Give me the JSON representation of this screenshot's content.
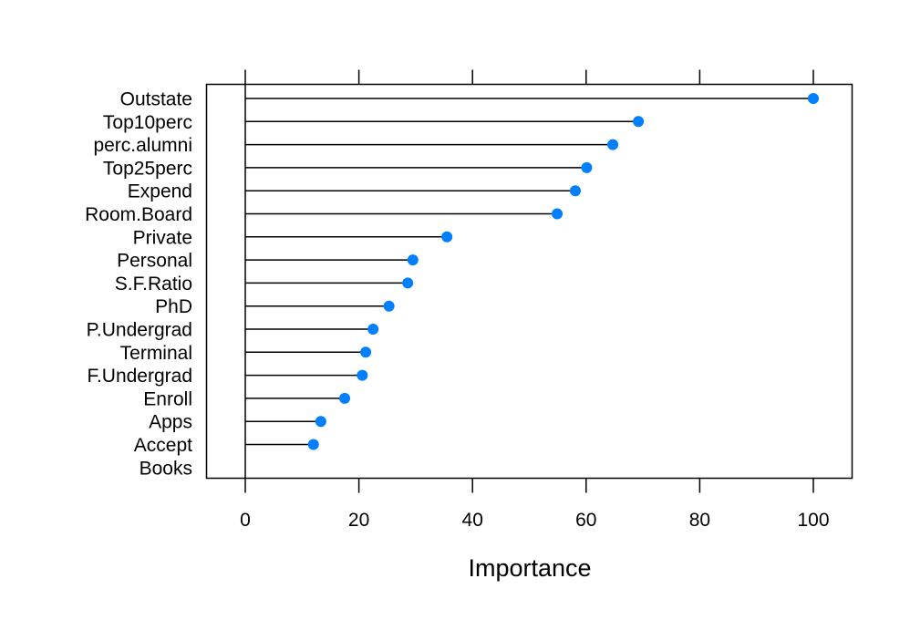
{
  "chart_data": {
    "type": "dot",
    "title": "",
    "xlabel": "Importance",
    "ylabel": "",
    "xlim": [
      -7,
      107
    ],
    "xticks": [
      0,
      20,
      40,
      60,
      80,
      100
    ],
    "grid": false,
    "legend": "none",
    "point_color": "#0080FF",
    "categories": [
      "Outstate",
      "Top10perc",
      "perc.alumni",
      "Top25perc",
      "Expend",
      "Room.Board",
      "Private",
      "Personal",
      "S.F.Ratio",
      "PhD",
      "P.Undergrad",
      "Terminal",
      "F.Undergrad",
      "Enroll",
      "Apps",
      "Accept",
      "Books"
    ],
    "values": [
      100,
      69.2,
      64.7,
      60.1,
      58.1,
      54.9,
      35.5,
      29.5,
      28.6,
      25.3,
      22.5,
      21.2,
      20.6,
      17.5,
      13.3,
      12.0,
      0
    ]
  }
}
